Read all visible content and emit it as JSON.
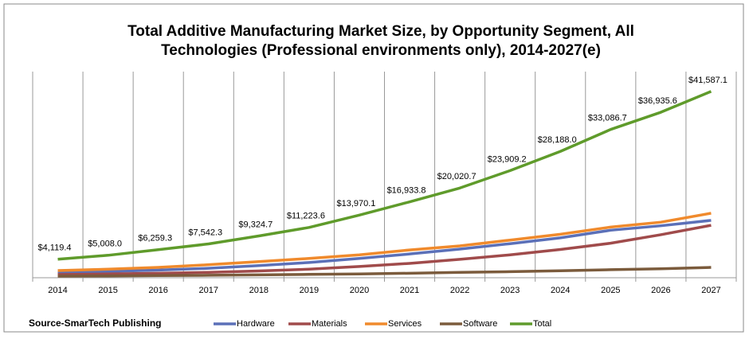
{
  "chart_data": {
    "type": "line",
    "title": "Total Additive Manufacturing Market Size, by Opportunity Segment, All",
    "title_line2": "Technologies (Professional environments only), 2014-2027(e)",
    "source": "Source-SmarTech Publishing",
    "categories": [
      "2014",
      "2015",
      "2016",
      "2017",
      "2018",
      "2019",
      "2020",
      "2021",
      "2022",
      "2023",
      "2024",
      "2025",
      "2026",
      "2027"
    ],
    "ylim": [
      0,
      46000
    ],
    "series": [
      {
        "name": "Hardware",
        "color": "#5b70b8",
        "values": [
          1100,
          1400,
          1700,
          2100,
          2700,
          3400,
          4300,
          5300,
          6400,
          7600,
          8900,
          10600,
          11600,
          12800
        ]
      },
      {
        "name": "Materials",
        "color": "#a04b4b",
        "values": [
          700,
          850,
          1000,
          1200,
          1500,
          1900,
          2500,
          3200,
          4100,
          5100,
          6300,
          7700,
          9600,
          11700
        ]
      },
      {
        "name": "Services",
        "color": "#f08a2c",
        "values": [
          1600,
          1900,
          2300,
          2900,
          3600,
          4300,
          5100,
          6200,
          7100,
          8400,
          9700,
          11300,
          12400,
          14400
        ]
      },
      {
        "name": "Software",
        "color": "#7b5b3c",
        "values": [
          350,
          400,
          480,
          550,
          650,
          750,
          850,
          1000,
          1200,
          1350,
          1550,
          1800,
          2000,
          2300
        ]
      },
      {
        "name": "Total",
        "color": "#5f9b2b",
        "values": [
          4119.4,
          5008.0,
          6259.3,
          7542.3,
          9324.7,
          11223.6,
          13970.1,
          16933.8,
          20020.7,
          23909.2,
          28188.0,
          33086.7,
          36935.6,
          41587.1
        ],
        "value_labels": [
          "$4,119.4",
          "$5,008.0",
          "$6,259.3",
          "$7,542.3",
          "$9,324.7",
          "$11,223.6",
          "$13,970.1",
          "$16,933.8",
          "$20,020.7",
          "$23,909.2",
          "$28,188.0",
          "$33,086.7",
          "$36,935.6",
          "$41,587.1"
        ]
      }
    ]
  }
}
